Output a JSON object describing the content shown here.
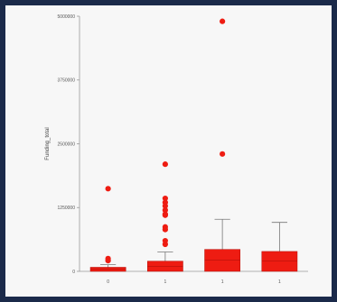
{
  "chart_data": {
    "type": "boxplot",
    "ylabel": "Funding_total",
    "ylim": [
      0,
      5000000
    ],
    "yticks": [
      0,
      1250000,
      2500000,
      3750000,
      5000000
    ],
    "categories": [
      "0",
      "1",
      "1",
      "1"
    ],
    "boxes": [
      {
        "category": "0",
        "q1": 0,
        "median": 40000,
        "q3": 80000,
        "whisker_low": 0,
        "whisker_high": 130000,
        "outliers": [
          1620000,
          250000,
          210000
        ]
      },
      {
        "category": "1",
        "q1": 0,
        "median": 100000,
        "q3": 200000,
        "whisker_low": 0,
        "whisker_high": 380000,
        "outliers": [
          2100000,
          1430000,
          1350000,
          1280000,
          1200000,
          1120000,
          1100000,
          870000,
          820000,
          600000,
          530000
        ]
      },
      {
        "category": "1",
        "q1": 0,
        "median": 220000,
        "q3": 430000,
        "whisker_low": 0,
        "whisker_high": 1020000,
        "outliers": [
          4900000,
          2300000
        ]
      },
      {
        "category": "1",
        "q1": 0,
        "median": 200000,
        "q3": 390000,
        "whisker_low": 0,
        "whisker_high": 960000,
        "outliers": []
      }
    ],
    "colors": {
      "box": "#ee1c12",
      "outlier": "#ee1c12",
      "whisker": "#777777",
      "axis": "#999999"
    },
    "grid": false
  }
}
